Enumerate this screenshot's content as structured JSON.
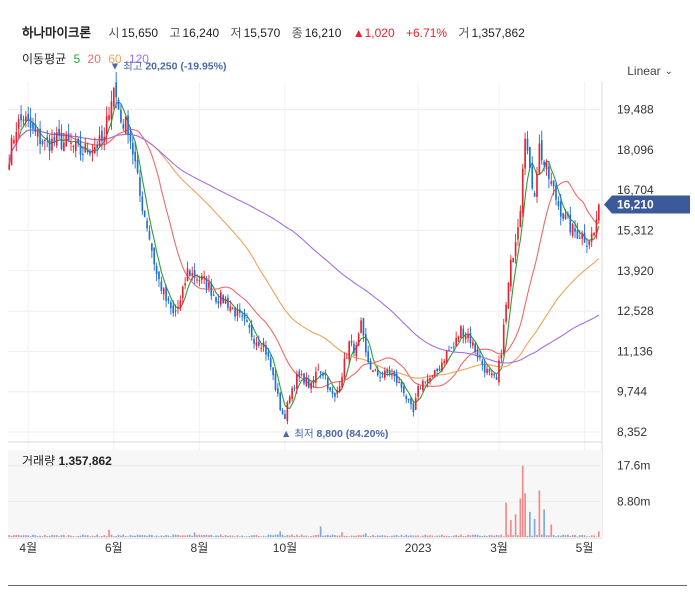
{
  "header": {
    "name": "하나마이크론",
    "open_label": "시",
    "open": "15,650",
    "high_label": "고",
    "high": "16,240",
    "low_label": "저",
    "low": "15,570",
    "close_label": "종",
    "close": "16,210",
    "change": "1,020",
    "change_pct": "+6.71%",
    "volume_label": "거",
    "volume": "1,357,862"
  },
  "ma_legend": {
    "label": "이동평균",
    "items": [
      {
        "text": "5",
        "color": "#2e9e3a"
      },
      {
        "text": "20",
        "color": "#ec6a6a"
      },
      {
        "text": "60",
        "color": "#f0a35a"
      },
      {
        "text": "120",
        "color": "#a56fe6"
      }
    ]
  },
  "scale_selector": {
    "label": "Linear"
  },
  "annotations": {
    "high": {
      "text": "최고",
      "value": "20,250 (-19.95%)"
    },
    "low": {
      "text": "최저",
      "value": "8,800 (84.20%)"
    }
  },
  "current_price_tag": "16,210",
  "volume_panel": {
    "label": "거래량",
    "value": "1,357,862"
  },
  "colors": {
    "up": "#e8222e",
    "down": "#1f6fd1",
    "tag": "#3c5a9a",
    "grid": "#eeeeee"
  },
  "chart_data": {
    "type": "candlestick",
    "title": "",
    "y_ticks": [
      "19,488",
      "18,096",
      "16,704",
      "15,312",
      "13,920",
      "12,528",
      "11,136",
      "9,744",
      "8,352"
    ],
    "y_tick_values": [
      19488,
      18096,
      16704,
      15312,
      13920,
      12528,
      11136,
      9744,
      8352
    ],
    "ylim": [
      8352,
      20300
    ],
    "x_ticks": [
      "4월",
      "6월",
      "8월",
      "10월",
      "2023",
      "3월",
      "5월"
    ],
    "x_tick_index": [
      8,
      44,
      80,
      116,
      172,
      206,
      242
    ],
    "volume_ticks": [
      "17.6m",
      "8.80m"
    ],
    "volume_tick_values": [
      17.6,
      8.8
    ],
    "volume_max": 20,
    "price_keypoints": [
      [
        0,
        17900
      ],
      [
        3,
        18900
      ],
      [
        6,
        19200
      ],
      [
        10,
        18700
      ],
      [
        15,
        18300
      ],
      [
        20,
        18400
      ],
      [
        25,
        18300
      ],
      [
        30,
        18000
      ],
      [
        35,
        18200
      ],
      [
        40,
        18400
      ],
      [
        42,
        19600
      ],
      [
        44,
        20250
      ],
      [
        47,
        19100
      ],
      [
        50,
        18900
      ],
      [
        53,
        17600
      ],
      [
        55,
        16500
      ],
      [
        58,
        15500
      ],
      [
        62,
        13800
      ],
      [
        66,
        12900
      ],
      [
        69,
        12400
      ],
      [
        72,
        12800
      ],
      [
        75,
        13900
      ],
      [
        79,
        13700
      ],
      [
        83,
        13500
      ],
      [
        87,
        13000
      ],
      [
        91,
        12900
      ],
      [
        95,
        12500
      ],
      [
        99,
        12100
      ],
      [
        103,
        11600
      ],
      [
        107,
        11400
      ],
      [
        110,
        10600
      ],
      [
        114,
        9200
      ],
      [
        116,
        8800
      ],
      [
        118,
        9700
      ],
      [
        121,
        10200
      ],
      [
        124,
        10200
      ],
      [
        127,
        9900
      ],
      [
        130,
        10600
      ],
      [
        133,
        10300
      ],
      [
        135,
        9700
      ],
      [
        137,
        9500
      ],
      [
        140,
        10400
      ],
      [
        143,
        11400
      ],
      [
        146,
        11200
      ],
      [
        148,
        12000
      ],
      [
        150,
        11000
      ],
      [
        153,
        10400
      ],
      [
        157,
        10300
      ],
      [
        160,
        10400
      ],
      [
        163,
        10100
      ],
      [
        166,
        9800
      ],
      [
        168,
        9300
      ],
      [
        170,
        9000
      ],
      [
        172,
        9800
      ],
      [
        175,
        10200
      ],
      [
        178,
        10200
      ],
      [
        181,
        10600
      ],
      [
        184,
        11100
      ],
      [
        187,
        11300
      ],
      [
        190,
        11900
      ],
      [
        193,
        11700
      ],
      [
        196,
        11200
      ],
      [
        199,
        10700
      ],
      [
        202,
        10300
      ],
      [
        205,
        10100
      ],
      [
        207,
        11200
      ],
      [
        209,
        12700
      ],
      [
        211,
        14100
      ],
      [
        213,
        15100
      ],
      [
        215,
        16200
      ],
      [
        216,
        17700
      ],
      [
        217,
        18800
      ],
      [
        219,
        17200
      ],
      [
        221,
        16700
      ],
      [
        223,
        18200
      ],
      [
        225,
        17600
      ],
      [
        228,
        16900
      ],
      [
        231,
        16200
      ],
      [
        234,
        15700
      ],
      [
        237,
        15300
      ],
      [
        240,
        15200
      ],
      [
        243,
        15000
      ],
      [
        246,
        15200
      ],
      [
        248,
        16210
      ]
    ],
    "volume_spikes": [
      [
        42,
        1.8
      ],
      [
        78,
        1.1
      ],
      [
        114,
        1.4
      ],
      [
        131,
        2.6
      ],
      [
        140,
        1.2
      ],
      [
        150,
        0.9
      ],
      [
        209,
        8.5
      ],
      [
        211,
        4.2
      ],
      [
        213,
        5.6
      ],
      [
        215,
        9.5
      ],
      [
        216,
        17.6
      ],
      [
        217,
        10.8
      ],
      [
        219,
        6.2
      ],
      [
        221,
        4.5
      ],
      [
        223,
        11.5
      ],
      [
        225,
        6.8
      ],
      [
        228,
        3.1
      ],
      [
        248,
        1.36
      ]
    ],
    "series": [
      {
        "name": "5",
        "color": "#2e9e3a"
      },
      {
        "name": "20",
        "color": "#ec6a6a"
      },
      {
        "name": "60",
        "color": "#f0a35a"
      },
      {
        "name": "120",
        "color": "#a56fe6"
      }
    ]
  }
}
